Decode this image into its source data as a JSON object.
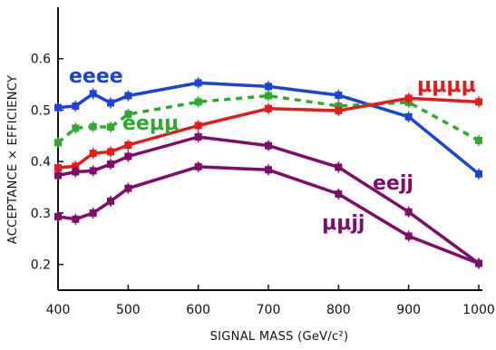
{
  "chart_data": {
    "type": "line",
    "xlabel": "SIGNAL MASS (GeV/c²)",
    "ylabel": "ACCEPTANCE × EFFICIENCY",
    "xlim": [
      400,
      1000
    ],
    "ylim": [
      0.15,
      0.7
    ],
    "x_ticks": [
      400,
      500,
      600,
      700,
      800,
      900,
      1000
    ],
    "x_tick_labels": [
      "400",
      "500",
      "600",
      "700",
      "800",
      "900",
      "1000"
    ],
    "y_ticks": [
      0.2,
      0.3,
      0.4,
      0.5,
      0.6
    ],
    "y_tick_labels": [
      "0.2",
      "0.3",
      "0.4",
      "0.5",
      "0.6"
    ],
    "grid": false,
    "series": [
      {
        "name": "eeee",
        "color": "#1a44d6",
        "style": "solid",
        "x": [
          400,
          425,
          450,
          475,
          500,
          600,
          700,
          800,
          900,
          1000
        ],
        "y": [
          0.505,
          0.508,
          0.532,
          0.514,
          0.528,
          0.553,
          0.546,
          0.529,
          0.487,
          0.376
        ]
      },
      {
        "name": "eeμμ",
        "color": "#2eaa2e",
        "style": "dashed",
        "x": [
          400,
          425,
          450,
          475,
          500,
          600,
          700,
          800,
          900,
          1000
        ],
        "y": [
          0.437,
          0.465,
          0.468,
          0.467,
          0.492,
          0.516,
          0.528,
          0.508,
          0.515,
          0.441
        ]
      },
      {
        "name": "μμμμ",
        "color": "#e21b1b",
        "style": "solid",
        "x": [
          400,
          425,
          450,
          475,
          500,
          600,
          700,
          800,
          900,
          1000
        ],
        "y": [
          0.388,
          0.391,
          0.416,
          0.419,
          0.432,
          0.47,
          0.503,
          0.499,
          0.523,
          0.516
        ]
      },
      {
        "name": "eejj",
        "color": "#7f0b6b",
        "style": "solid",
        "x": [
          400,
          425,
          450,
          475,
          500,
          600,
          700,
          800,
          900,
          1000
        ],
        "y": [
          0.373,
          0.38,
          0.382,
          0.395,
          0.41,
          0.448,
          0.431,
          0.389,
          0.302,
          0.202
        ]
      },
      {
        "name": "μμjj",
        "color": "#7f0b6b",
        "style": "solid",
        "x": [
          400,
          425,
          450,
          475,
          500,
          600,
          700,
          800,
          900,
          1000
        ],
        "y": [
          0.293,
          0.288,
          0.3,
          0.323,
          0.348,
          0.39,
          0.384,
          0.337,
          0.255,
          0.202
        ]
      }
    ]
  }
}
